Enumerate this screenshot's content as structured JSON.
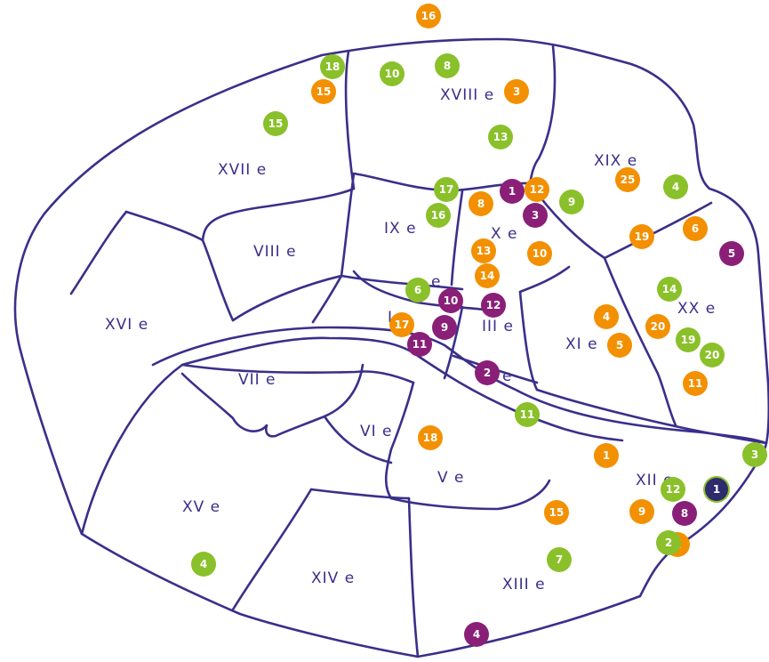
{
  "districts": [
    {
      "name": "xviii",
      "label": "XVIII e"
    },
    {
      "name": "xvii",
      "label": "XVII e"
    },
    {
      "name": "xix",
      "label": "XIX e"
    },
    {
      "name": "ix",
      "label": "IX e"
    },
    {
      "name": "x",
      "label": "X e"
    },
    {
      "name": "viii",
      "label": "VIII e"
    },
    {
      "name": "xvi",
      "label": "XVI e"
    },
    {
      "name": "xx",
      "label": "XX e"
    },
    {
      "name": "iii",
      "label": "III e"
    },
    {
      "name": "xi",
      "label": "XI e"
    },
    {
      "name": "vii",
      "label": "VII e"
    },
    {
      "name": "vi",
      "label": "VI e"
    },
    {
      "name": "v",
      "label": "V e"
    },
    {
      "name": "xii",
      "label": "XII e"
    },
    {
      "name": "xv",
      "label": "XV e"
    },
    {
      "name": "xiv",
      "label": "XIV e"
    },
    {
      "name": "xiii",
      "label": "XIII e"
    },
    {
      "name": "ii",
      "label": "e"
    },
    {
      "name": "i",
      "label": "I"
    },
    {
      "name": "iv",
      "label": "e"
    }
  ],
  "markers": [
    {
      "label": "16",
      "color": "orange"
    },
    {
      "label": "18",
      "color": "green"
    },
    {
      "label": "10",
      "color": "green"
    },
    {
      "label": "8",
      "color": "green"
    },
    {
      "label": "15",
      "color": "orange"
    },
    {
      "label": "3",
      "color": "orange"
    },
    {
      "label": "15",
      "color": "green"
    },
    {
      "label": "13",
      "color": "green"
    },
    {
      "label": "25",
      "color": "orange"
    },
    {
      "label": "4",
      "color": "green"
    },
    {
      "label": "17",
      "color": "green"
    },
    {
      "label": "1",
      "color": "purple"
    },
    {
      "label": "12",
      "color": "orange"
    },
    {
      "label": "8",
      "color": "orange"
    },
    {
      "label": "9",
      "color": "green"
    },
    {
      "label": "16",
      "color": "green"
    },
    {
      "label": "3",
      "color": "purple"
    },
    {
      "label": "19",
      "color": "orange"
    },
    {
      "label": "6",
      "color": "orange"
    },
    {
      "label": "5",
      "color": "purple"
    },
    {
      "label": "13",
      "color": "orange"
    },
    {
      "label": "10",
      "color": "orange"
    },
    {
      "label": "14",
      "color": "orange"
    },
    {
      "label": "6",
      "color": "green"
    },
    {
      "label": "14",
      "color": "green"
    },
    {
      "label": "10",
      "color": "purple"
    },
    {
      "label": "12",
      "color": "purple"
    },
    {
      "label": "4",
      "color": "orange"
    },
    {
      "label": "20",
      "color": "orange"
    },
    {
      "label": "17",
      "color": "orange"
    },
    {
      "label": "9",
      "color": "purple"
    },
    {
      "label": "19",
      "color": "green"
    },
    {
      "label": "11",
      "color": "purple"
    },
    {
      "label": "5",
      "color": "orange"
    },
    {
      "label": "20",
      "color": "green"
    },
    {
      "label": "2",
      "color": "purple"
    },
    {
      "label": "11",
      "color": "orange"
    },
    {
      "label": "11",
      "color": "green"
    },
    {
      "label": "18",
      "color": "orange"
    },
    {
      "label": "1",
      "color": "orange"
    },
    {
      "label": "3",
      "color": "green"
    },
    {
      "label": "12",
      "color": "green"
    },
    {
      "label": "1",
      "color": "navy"
    },
    {
      "label": "15",
      "color": "orange"
    },
    {
      "label": "9",
      "color": "orange"
    },
    {
      "label": "8",
      "color": "purple"
    },
    {
      "label": "2",
      "color": "orange"
    },
    {
      "label": "2",
      "color": "green"
    },
    {
      "label": "7",
      "color": "green"
    },
    {
      "label": "4",
      "color": "green"
    },
    {
      "label": "4",
      "color": "purple"
    }
  ]
}
